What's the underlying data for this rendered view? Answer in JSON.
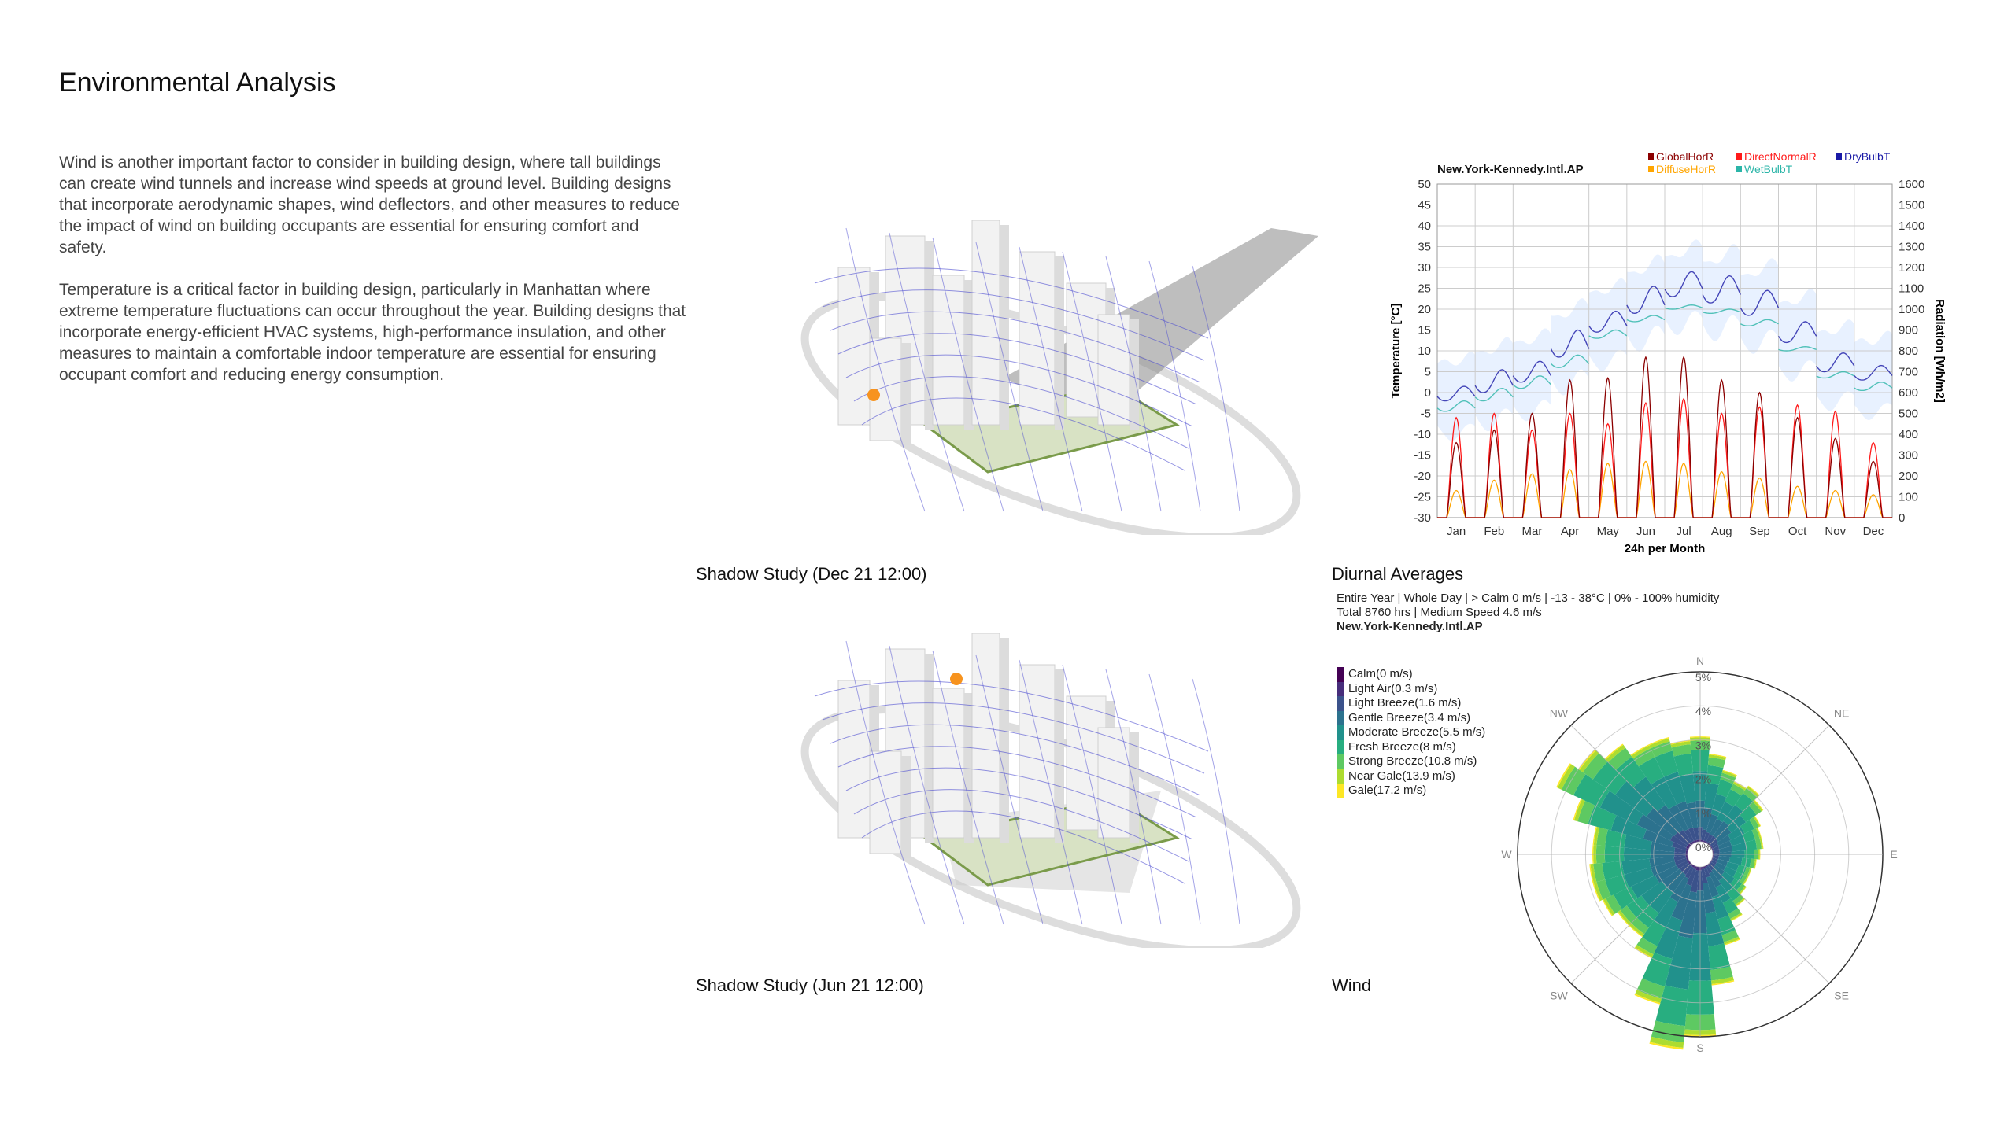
{
  "page": {
    "title": "Environmental Analysis",
    "paragraphs": [
      "Wind is another important factor to consider in building design, where tall buildings can create wind tunnels and increase wind speeds at ground level. Building designs that incorporate aerodynamic shapes, wind deflectors, and other measures to reduce the impact of wind on building occupants are essential for ensuring comfort and safety.",
      "Temperature is a critical factor in building design, particularly in Manhattan where extreme temperature fluctuations can occur throughout the year. Building designs that incorporate energy-efficient HVAC systems, high-performance insulation, and other measures to maintain a comfortable indoor temperature are essential for ensuring occupant comfort and reducing energy consumption."
    ]
  },
  "shadow_studies": [
    {
      "caption": "Shadow Study (Dec 21 12:00)",
      "sun_color": "#f7931e"
    },
    {
      "caption": "Shadow Study (Jun 21 12:00)",
      "sun_color": "#f7931e"
    }
  ],
  "captions": {
    "diurnal": "Diurnal Averages",
    "wind": "Wind"
  },
  "chart_data": [
    {
      "type": "line",
      "title": "New.York-Kennedy.Intl.AP",
      "xlabel": "24h per Month",
      "ylabel": "Temperature [°C]",
      "y2label": "Radiation [Wh/m2]",
      "ylim": [
        -30,
        50
      ],
      "y2lim": [
        0,
        1600
      ],
      "yticks": [
        "50",
        "45",
        "40",
        "35",
        "30",
        "25",
        "20",
        "15",
        "10",
        "5",
        "0",
        "-5",
        "-10",
        "-15",
        "-20",
        "-25",
        "-30"
      ],
      "y2ticks": [
        "1600",
        "1500",
        "1400",
        "1300",
        "1200",
        "1100",
        "1000",
        "900",
        "800",
        "700",
        "600",
        "500",
        "400",
        "300",
        "200",
        "100",
        "0"
      ],
      "categories": [
        "Jan",
        "Feb",
        "Mar",
        "Apr",
        "May",
        "Jun",
        "Jul",
        "Aug",
        "Sep",
        "Oct",
        "Nov",
        "Dec"
      ],
      "grid": true,
      "legend_placement": "top-right",
      "legend": [
        {
          "name": "GlobalHorR",
          "color": "#8b0000"
        },
        {
          "name": "DirectNormalR",
          "color": "#ff1a1a"
        },
        {
          "name": "DryBulbT",
          "color": "#1a1aa6"
        },
        {
          "name": "DiffuseHorR",
          "color": "#ffa500"
        },
        {
          "name": "WetBulbT",
          "color": "#2bb5a8"
        }
      ],
      "series": [
        {
          "name": "DryBulbT",
          "axis": "temperature",
          "daily_min": [
            -2,
            0,
            2.5,
            8.5,
            14.5,
            19,
            23,
            21.5,
            18.5,
            12,
            5,
            3
          ],
          "daily_max": [
            1.5,
            5.5,
            7.5,
            15,
            19.5,
            25.5,
            29,
            28,
            24.5,
            17,
            9.5,
            6.5
          ]
        },
        {
          "name": "WetBulbT",
          "axis": "temperature",
          "daily_min": [
            -4.5,
            -2,
            1,
            6,
            13,
            17,
            20,
            19,
            16,
            10,
            3.5,
            0.5
          ],
          "daily_max": [
            -2,
            1,
            4,
            9,
            15,
            18.5,
            21,
            20,
            17.5,
            11,
            5,
            2.5
          ]
        },
        {
          "name": "GlobalHorR",
          "axis": "radiation",
          "daily_peak": [
            360,
            420,
            500,
            660,
            670,
            770,
            770,
            660,
            600,
            480,
            380,
            270
          ]
        },
        {
          "name": "DirectNormalR",
          "axis": "radiation",
          "daily_peak": [
            480,
            500,
            420,
            500,
            450,
            550,
            570,
            500,
            530,
            540,
            510,
            360
          ]
        },
        {
          "name": "DiffuseHorR",
          "axis": "radiation",
          "daily_peak": [
            130,
            180,
            210,
            230,
            260,
            270,
            260,
            220,
            190,
            150,
            130,
            110
          ]
        }
      ],
      "range_band_color": "#e6efff"
    },
    {
      "type": "wind-rose",
      "info_lines": [
        "Entire Year | Whole Day | > Calm 0 m/s | -13 - 38°C | 0% - 100% humidity",
        "Total 8760 hrs | Medium Speed 4.6 m/s"
      ],
      "station": "New.York-Kennedy.Intl.AP",
      "ring_labels": [
        "0%",
        "1%",
        "2%",
        "3%",
        "4%",
        "5%"
      ],
      "directions": [
        "N",
        "NE",
        "E",
        "SE",
        "S",
        "SW",
        "W",
        "NW"
      ],
      "bins": [
        {
          "label": "Calm(0 m/s)",
          "color": "#440154"
        },
        {
          "label": "Light Air(0.3 m/s)",
          "color": "#472d7b"
        },
        {
          "label": "Light Breeze(1.6 m/s)",
          "color": "#3b528b"
        },
        {
          "label": "Gentle Breeze(3.4 m/s)",
          "color": "#2c728e"
        },
        {
          "label": "Moderate Breeze(5.5 m/s)",
          "color": "#21918c"
        },
        {
          "label": "Fresh Breeze(8 m/s)",
          "color": "#28ae80"
        },
        {
          "label": "Strong Breeze(10.8 m/s)",
          "color": "#5ec962"
        },
        {
          "label": "Near Gale(13.9 m/s)",
          "color": "#addc30"
        },
        {
          "label": "Gale(17.2 m/s)",
          "color": "#fde725"
        }
      ],
      "sector_degrees": [
        0,
        10,
        20,
        30,
        40,
        50,
        60,
        70,
        80,
        90,
        100,
        110,
        120,
        130,
        140,
        150,
        160,
        170,
        180,
        190,
        200,
        210,
        220,
        230,
        240,
        250,
        260,
        270,
        280,
        290,
        300,
        310,
        320,
        330,
        340,
        350
      ],
      "sector_total_percent": [
        3.1,
        2.6,
        2.2,
        2.0,
        2.1,
        1.9,
        1.6,
        1.5,
        1.5,
        1.4,
        1.3,
        1.2,
        1.2,
        1.3,
        1.5,
        1.8,
        2.4,
        3.5,
        5.0,
        5.4,
        4.2,
        3.0,
        2.6,
        2.6,
        2.8,
        2.9,
        2.9,
        2.8,
        2.8,
        3.5,
        4.3,
        4.0,
        3.6,
        3.2,
        3.2,
        3.0
      ],
      "bin_share": [
        0,
        0.02,
        0.12,
        0.25,
        0.28,
        0.2,
        0.09,
        0.03,
        0.01
      ]
    }
  ]
}
